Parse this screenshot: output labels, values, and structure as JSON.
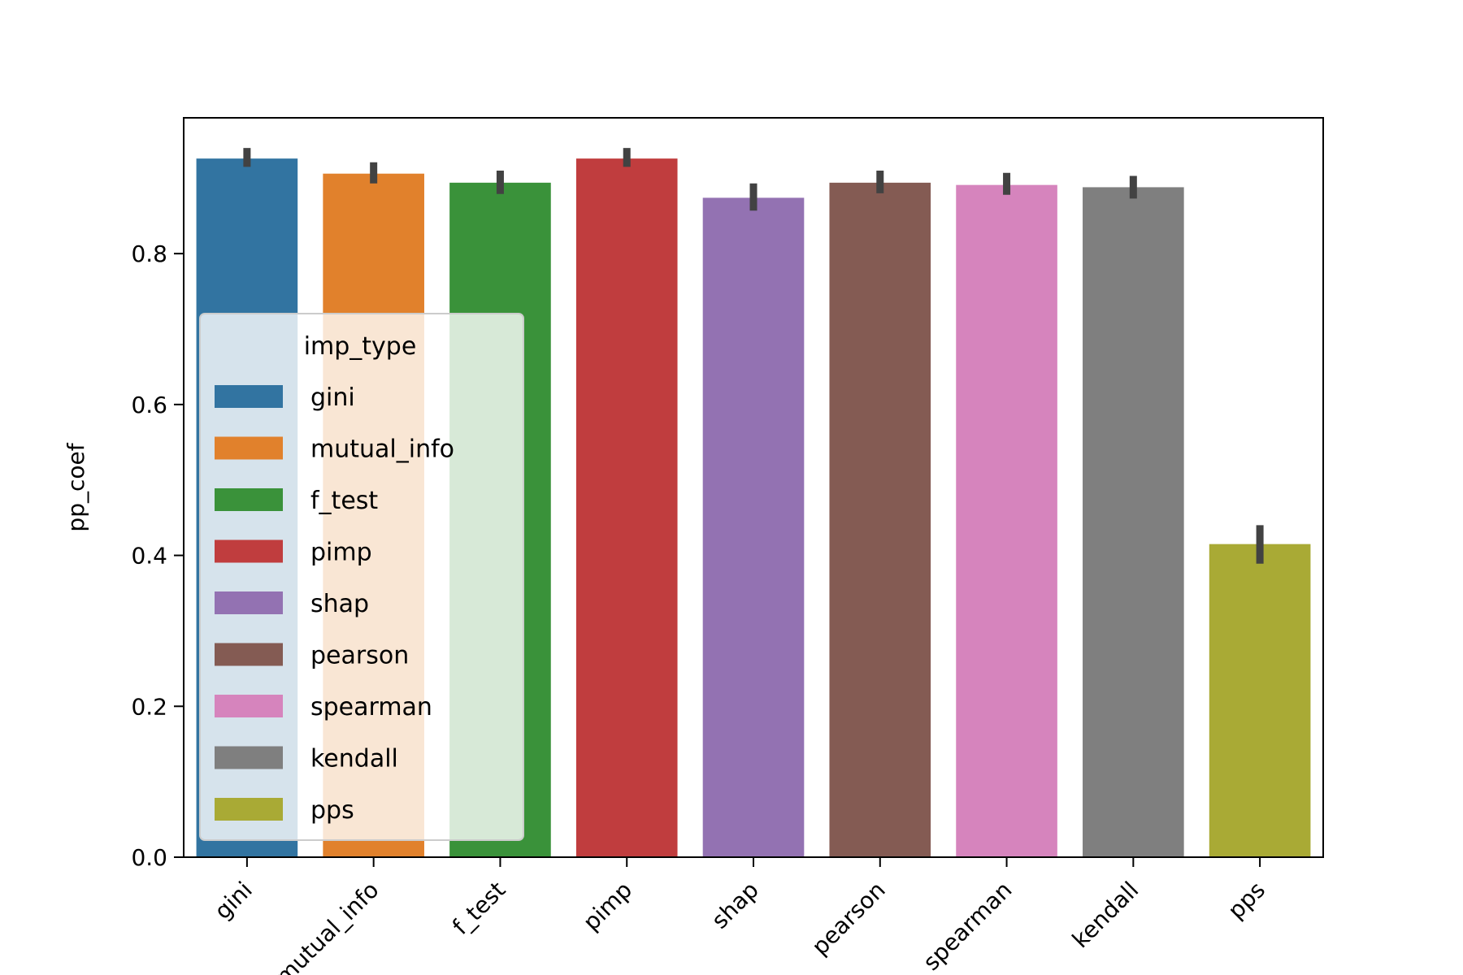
{
  "chart_data": {
    "type": "bar",
    "title": "",
    "xlabel": "",
    "ylabel": "pp_coef",
    "ylim": [
      0,
      0.98
    ],
    "yticks": [
      "0.0",
      "0.2",
      "0.4",
      "0.6",
      "0.8"
    ],
    "ytick_values": [
      0.0,
      0.2,
      0.4,
      0.6,
      0.8
    ],
    "categories": [
      "gini",
      "mutual_info",
      "f_test",
      "pimp",
      "shap",
      "pearson",
      "spearman",
      "kendall",
      "pps"
    ],
    "values": [
      0.926,
      0.906,
      0.894,
      0.926,
      0.874,
      0.894,
      0.891,
      0.888,
      0.415
    ],
    "error_low": [
      0.915,
      0.893,
      0.879,
      0.915,
      0.857,
      0.88,
      0.878,
      0.873,
      0.389
    ],
    "error_high": [
      0.94,
      0.921,
      0.91,
      0.94,
      0.893,
      0.91,
      0.907,
      0.903,
      0.44
    ],
    "colors": [
      "#3274a1",
      "#e1812c",
      "#3a923a",
      "#c03d3e",
      "#9372b2",
      "#845b53",
      "#d684bd",
      "#7f7f7f",
      "#a9aa35"
    ],
    "grid": false,
    "legend": {
      "title": "imp_type",
      "placement": "lower-left",
      "entries": [
        "gini",
        "mutual_info",
        "f_test",
        "pimp",
        "shap",
        "pearson",
        "spearman",
        "kendall",
        "pps"
      ]
    }
  }
}
